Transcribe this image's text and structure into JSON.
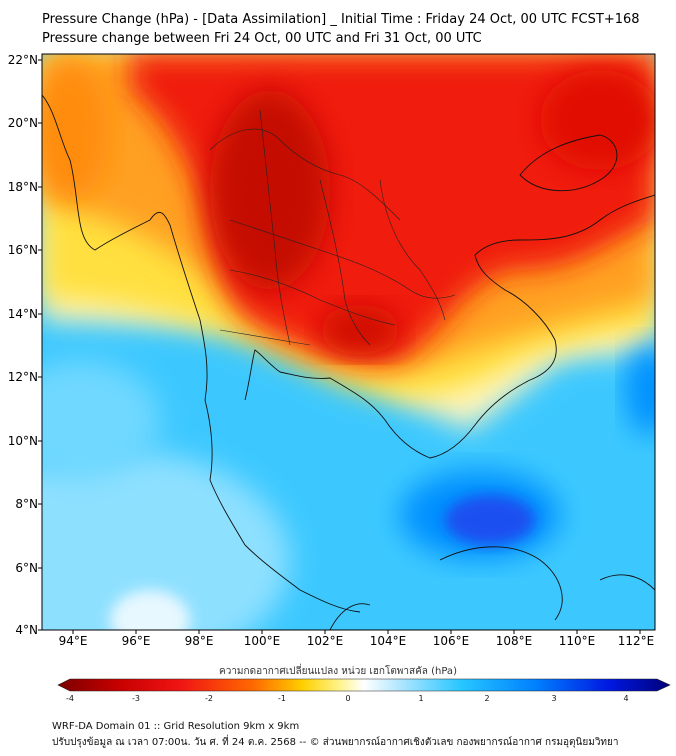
{
  "header": {
    "title_line1": "Pressure Change (hPa) - [Data Assimilation] _ Initial Time : Friday 24 Oct, 00 UTC FCST+168",
    "title_line2": "Pressure change between Fri 24 Oct, 00 UTC and Fri 31 Oct, 00 UTC"
  },
  "map": {
    "lat_labels": [
      "22°N",
      "20°N",
      "18°N",
      "16°N",
      "14°N",
      "12°N",
      "10°N",
      "8°N",
      "6°N",
      "4°N"
    ],
    "lon_labels": [
      "94°E",
      "96°E",
      "98°E",
      "100°E",
      "102°E",
      "104°E",
      "106°E",
      "108°E",
      "110°E",
      "112°E"
    ],
    "field": "pressure change (hPa)",
    "highlights": {
      "strong_rise_min_hPa": -3.5,
      "strong_fall_max_hPa": 2.8
    }
  },
  "colorbar": {
    "title": "ความกดอากาศเปลี่ยนแปลง หน่วย เฮกโตพาสคัล (hPa)",
    "tick_labels": [
      "-4",
      "-3",
      "-2",
      "-1",
      "0",
      "1",
      "2",
      "3",
      "4"
    ],
    "range": [
      -4,
      4
    ],
    "colors": [
      "#7a0000",
      "#c80000",
      "#f01414",
      "#ff6a00",
      "#ffd000",
      "#fff48c",
      "#ffffff",
      "#aee6ff",
      "#26c6ff",
      "#0080ff",
      "#0018e0",
      "#00007a"
    ]
  },
  "footer": {
    "line1": "WRF-DA Domain 01 :: Grid Resolution 9km x 9km",
    "line2": "ปรับปรุงข้อมูล ณ เวลา 07:00น. วัน ศ. ที่ 24 ต.ค. 2568 -- © ส่วนพยากรณ์อากาศเชิงตัวเลข กองพยากรณ์อากาศ กรมอุตุนิยมวิทยา"
  }
}
